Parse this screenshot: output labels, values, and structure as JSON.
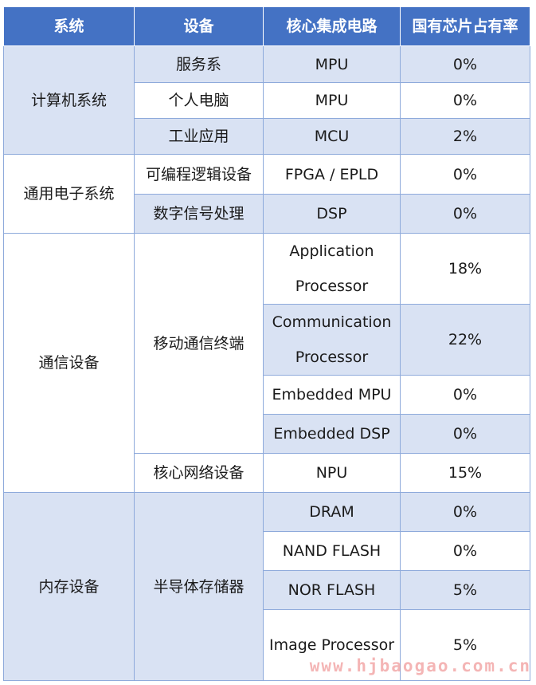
{
  "headers": [
    "系统",
    "设备",
    "核心集成电路",
    "国有芯片占有率"
  ],
  "groups": {
    "computer": "计算机系统",
    "general": "通用电子系统",
    "comm": "通信设备",
    "memory": "内存设备"
  },
  "devices": {
    "server": "服务系",
    "pc": "个人电脑",
    "industrial": "工业应用",
    "pld": "可编程逻辑设备",
    "dsp": "数字信号处理",
    "mobile": "移动通信终端",
    "core_net": "核心网络设备",
    "semi": "半导体存储器"
  },
  "rows": [
    {
      "chip": "MPU",
      "share": "0%"
    },
    {
      "chip": "MPU",
      "share": "0%"
    },
    {
      "chip": "MCU",
      "share": "2%"
    },
    {
      "chip": "FPGA / EPLD",
      "share": "0%"
    },
    {
      "chip": "DSP",
      "share": "0%"
    },
    {
      "chip": "Application Processor",
      "share": "18%"
    },
    {
      "chip": "Communication Processor",
      "share": "22%"
    },
    {
      "chip": "Embedded MPU",
      "share": "0%"
    },
    {
      "chip": "Embedded DSP",
      "share": "0%"
    },
    {
      "chip": "NPU",
      "share": "15%"
    },
    {
      "chip": "DRAM",
      "share": "0%"
    },
    {
      "chip": "NAND FLASH",
      "share": "0%"
    },
    {
      "chip": "NOR FLASH",
      "share": "5%"
    },
    {
      "chip": "Image Processor",
      "share": "5%"
    }
  ],
  "watermark": "www.hjbaogao.com.cn",
  "colors": {
    "header": "#4472c4",
    "band": "#d9e2f3",
    "border": "#8eaadb"
  }
}
